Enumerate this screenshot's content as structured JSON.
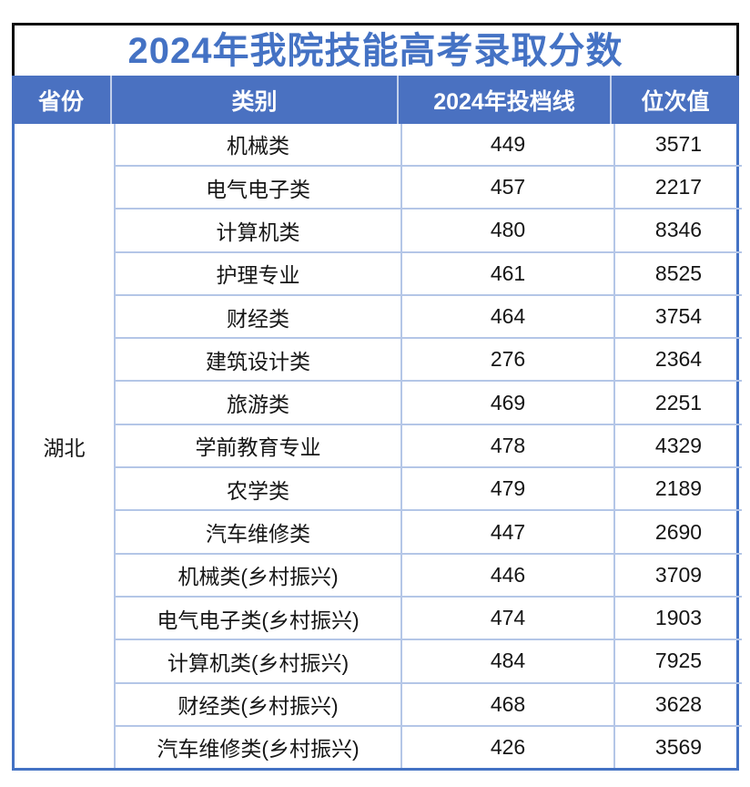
{
  "title": "2024年我院技能高考录取分数",
  "colors": {
    "accent_blue": "#4472c4",
    "header_background": "#4a71c1",
    "header_text": "#ffffff",
    "grid_line": "#b4c6e7",
    "title_border": "#0d0d0d",
    "title_text": "#4472c4",
    "body_text": "#161616"
  },
  "table": {
    "columns": [
      "省份",
      "类别",
      "2024年投档线",
      "位次值"
    ],
    "province": "湖北",
    "rows": [
      {
        "category": "机械类",
        "score": "449",
        "rank": "3571"
      },
      {
        "category": "电气电子类",
        "score": "457",
        "rank": "2217"
      },
      {
        "category": "计算机类",
        "score": "480",
        "rank": "8346"
      },
      {
        "category": "护理专业",
        "score": "461",
        "rank": "8525"
      },
      {
        "category": "财经类",
        "score": "464",
        "rank": "3754"
      },
      {
        "category": "建筑设计类",
        "score": "276",
        "rank": "2364"
      },
      {
        "category": "旅游类",
        "score": "469",
        "rank": "2251"
      },
      {
        "category": "学前教育专业",
        "score": "478",
        "rank": "4329"
      },
      {
        "category": "农学类",
        "score": "479",
        "rank": "2189"
      },
      {
        "category": "汽车维修类",
        "score": "447",
        "rank": "2690"
      },
      {
        "category": "机械类(乡村振兴)",
        "score": "446",
        "rank": "3709"
      },
      {
        "category": "电气电子类(乡村振兴)",
        "score": "474",
        "rank": "1903"
      },
      {
        "category": "计算机类(乡村振兴)",
        "score": "484",
        "rank": "7925"
      },
      {
        "category": "财经类(乡村振兴)",
        "score": "468",
        "rank": "3628"
      },
      {
        "category": "汽车维修类(乡村振兴)",
        "score": "426",
        "rank": "3569"
      }
    ]
  }
}
